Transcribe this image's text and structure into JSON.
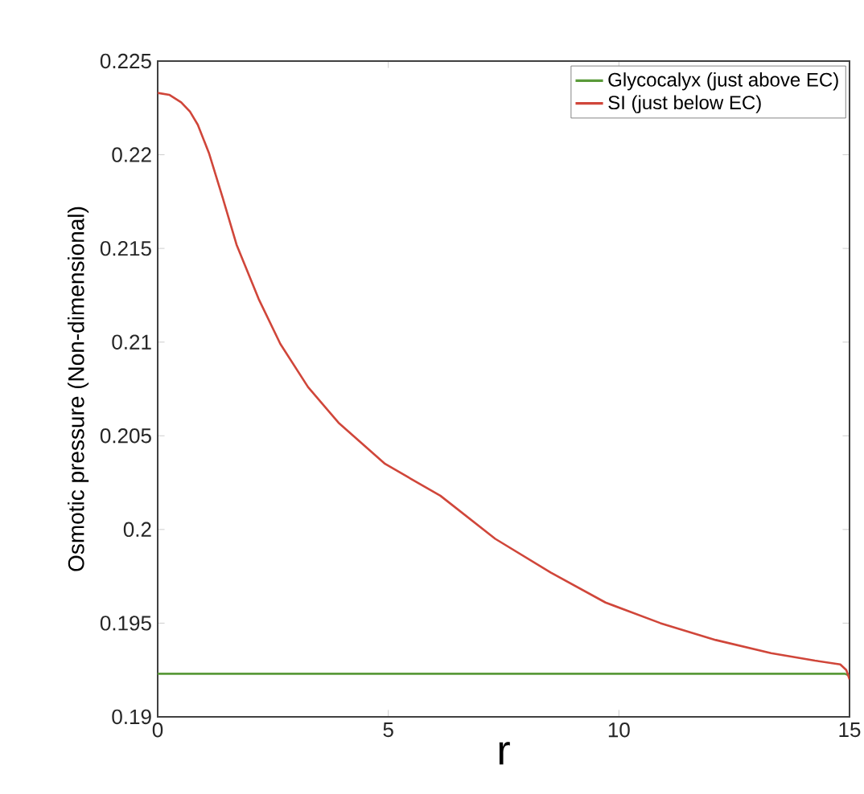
{
  "chart_data": {
    "type": "line",
    "xlabel": "r",
    "ylabel": "Osmotic pressure (Non-dimensional)",
    "xlim": [
      0,
      15
    ],
    "ylim": [
      0.19,
      0.225
    ],
    "xticks": [
      0,
      5,
      10,
      15
    ],
    "yticks": [
      0.19,
      0.195,
      0.2,
      0.205,
      0.21,
      0.215,
      0.22,
      0.225
    ],
    "legend": "top right",
    "grid": false,
    "marker": "none",
    "line_style": "solid",
    "series": [
      {
        "name": "Glycocalyx (just above EC)",
        "color": "#5a9a3a",
        "x": [
          0,
          5,
          10,
          14.5,
          14.9,
          15
        ],
        "values": [
          0.1923,
          0.1923,
          0.1923,
          0.1923,
          0.1923,
          0.1922
        ]
      },
      {
        "name": "SI (just below EC)",
        "color": "#d0463a",
        "x": [
          0,
          0.25,
          0.51,
          0.7,
          0.87,
          1.11,
          1.41,
          1.71,
          2.19,
          2.66,
          3.26,
          3.92,
          4.93,
          6.13,
          7.32,
          8.52,
          9.71,
          10.9,
          12.1,
          13.3,
          14.25,
          14.8,
          14.93,
          15
        ],
        "values": [
          0.2233,
          0.2232,
          0.2228,
          0.2223,
          0.2216,
          0.2201,
          0.2177,
          0.2152,
          0.2123,
          0.2099,
          0.2076,
          0.2057,
          0.2035,
          0.2018,
          0.1995,
          0.1977,
          0.1961,
          0.195,
          0.1941,
          0.1934,
          0.193,
          0.1928,
          0.1925,
          0.192
        ]
      }
    ]
  }
}
